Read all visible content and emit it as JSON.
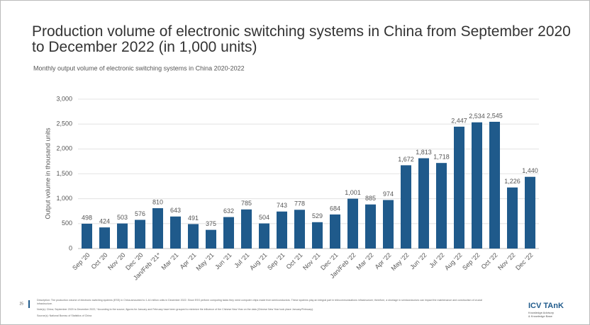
{
  "chart_data": {
    "type": "bar",
    "title": "Production volume of electronic switching systems in China from September 2020 to December 2022 (in 1,000 units)",
    "subtitle": "Monthly output volume of electronic switching systems in China 2020-2022",
    "y_label": "Output volume in thousand units",
    "categories": [
      "Sep '20",
      "Oct '20",
      "Nov '20",
      "Dec '20",
      "Jan/Feb '21*",
      "Mar '21",
      "Apr '21",
      "May '21",
      "Jun '21",
      "Jul '21",
      "Aug '21",
      "Sep '21",
      "Oct '21",
      "Nov '21",
      "Dec '21",
      "Jan/Feb '22",
      "Mar '22",
      "Apr '22",
      "May '22",
      "Jun '22",
      "Jul '22",
      "Aug '22",
      "Sep '22",
      "Oct '22",
      "Nov '22",
      "Dec '22"
    ],
    "values": [
      498,
      424,
      503,
      576,
      810,
      643,
      491,
      375,
      632,
      785,
      504,
      743,
      778,
      529,
      684,
      1001,
      885,
      974,
      1672,
      1813,
      1718,
      2447,
      2534,
      2545,
      1226,
      1440
    ],
    "value_labels": [
      "498",
      "424",
      "503",
      "576",
      "810",
      "643",
      "491",
      "375",
      "632",
      "785",
      "504",
      "743",
      "778",
      "529",
      "684",
      "1,001",
      "885",
      "974",
      "1,672",
      "1,813",
      "1,718",
      "2,447",
      "2,534",
      "2,545",
      "1,226",
      "1,440"
    ],
    "color": "#1f5a8b",
    "ylim": [
      0,
      3000
    ],
    "yticks": [
      0,
      500,
      {
        "value": 1000,
        "label": "1,000"
      },
      {
        "value": 1500,
        "label": "1,500"
      },
      {
        "value": 2000,
        "label": "2,000"
      },
      {
        "value": 2500,
        "label": "2,500"
      },
      {
        "value": 3000,
        "label": "3,000"
      }
    ],
    "grid": true
  },
  "footer": {
    "page": "25",
    "description": "Description: The production volume of electronic switching systems (ESS) in China amounted to 1.44 million units in December 2022. Since ESS perform computing tasks they need computer chips made from semiconductors. These systems play an integral part in telecommunications infrastructure; therefore, a shortage in semiconductors can impact the maintenance and construction of crucial infrastructure.",
    "notes": "Note(s): China; September 2020 to December 2022; *According to the source, figures for January and February have been grouped to minimize the influence of the Chinese New Year on the data (Chinese New Year took place January/February).",
    "source": "Source(s): National Bureau of Statistics of China"
  },
  "logo": {
    "name": "ICV TAnK",
    "tagline_1": "Knowledge Advisory",
    "tagline_2": "& Knowledge Base"
  }
}
